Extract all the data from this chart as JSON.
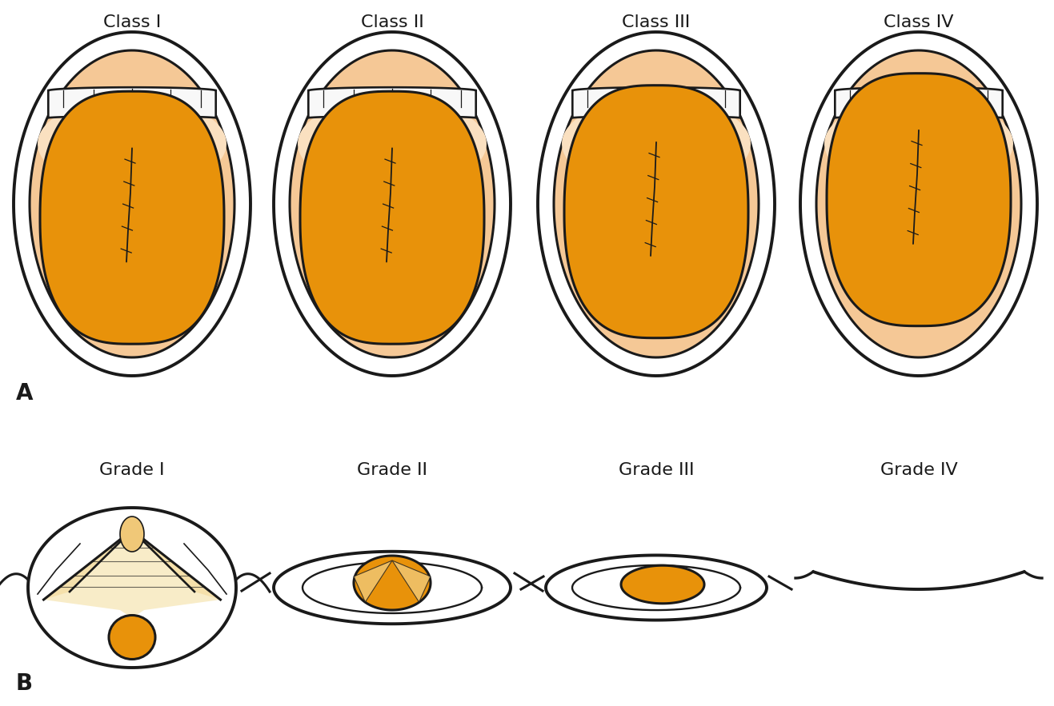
{
  "bg": "#ffffff",
  "class_labels": [
    "Class I",
    "Class II",
    "Class III",
    "Class IV"
  ],
  "grade_labels": [
    "Grade I",
    "Grade II",
    "Grade III",
    "Grade IV"
  ],
  "label_a": "A",
  "label_b": "B",
  "col_orange": "#E8920A",
  "col_orange_light": "#F5A830",
  "col_soft_palate": "#F5C896",
  "col_skin_light": "#FAE0C0",
  "col_throat_gray": "#A0A0A0",
  "col_throat_dark": "#707070",
  "col_white": "#FFFFFF",
  "col_teeth": "#F8F8F8",
  "col_line": "#1a1a1a",
  "col_vocal_tan": "#F0C878",
  "col_vocal_light": "#F5DCA0",
  "col_vocal_cream": "#F8ECC8"
}
